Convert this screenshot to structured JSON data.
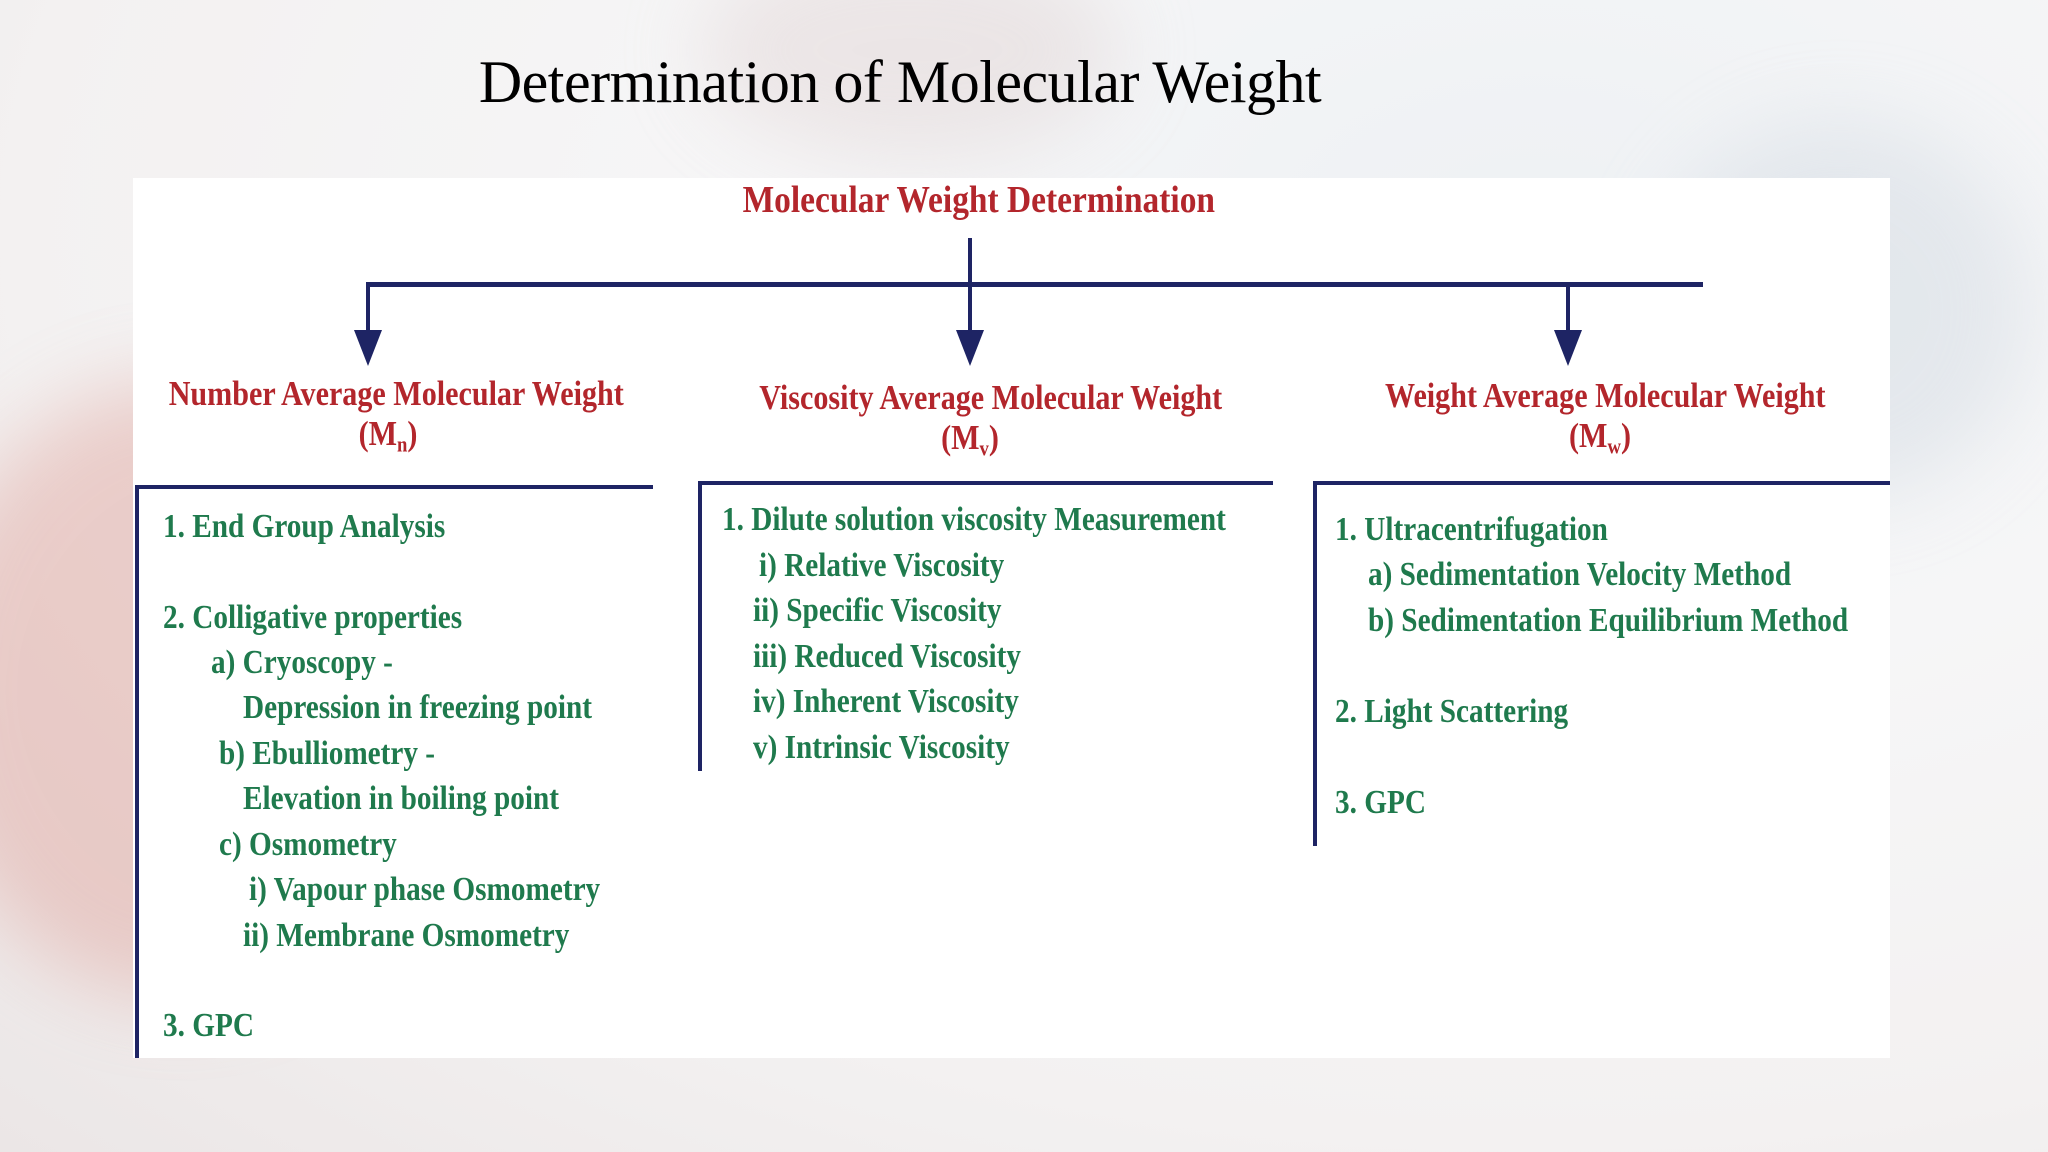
{
  "slide": {
    "title": "Determination of Molecular Weight"
  },
  "diagram": {
    "root": "Molecular Weight Determination",
    "branches": [
      {
        "title": "Number Average Molecular Weight",
        "symbol": "(M",
        "subscript": "n",
        "close": ")",
        "items": [
          "1. End Group Analysis",
          "2. Colligative properties",
          "a) Cryoscopy -",
          "Depression in freezing point",
          "b) Ebulliometry -",
          "Elevation in boiling point",
          "c) Osmometry",
          "i) Vapour phase Osmometry",
          "ii) Membrane Osmometry",
          "3. GPC"
        ]
      },
      {
        "title": "Viscosity Average Molecular Weight",
        "symbol": "(M",
        "subscript": "v",
        "close": ")",
        "items": [
          "1. Dilute solution viscosity Measurement",
          "i) Relative Viscosity",
          "ii) Specific Viscosity",
          "iii) Reduced Viscosity",
          "iv) Inherent Viscosity",
          "v) Intrinsic Viscosity"
        ]
      },
      {
        "title": "Weight Average Molecular Weight",
        "symbol": "(M",
        "subscript": "w",
        "close": ")",
        "items": [
          "1. Ultracentrifugation",
          "a) Sedimentation Velocity Method",
          "b) Sedimentation Equilibrium Method",
          "2. Light Scattering",
          "3. GPC"
        ]
      }
    ],
    "colors": {
      "heading": "#b3262c",
      "item": "#1f7a4d",
      "connector": "#1e2464"
    }
  }
}
